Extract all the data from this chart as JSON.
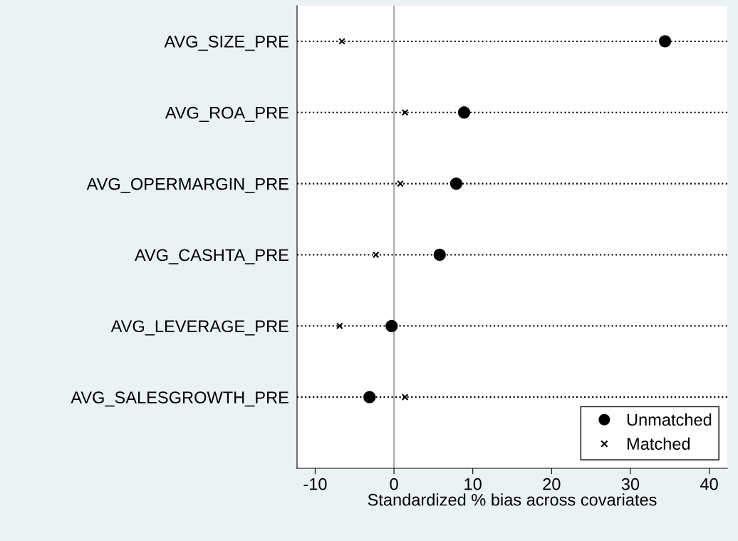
{
  "chart_data": {
    "type": "scatter",
    "orientation": "horizontal",
    "xlabel": "Standardized % bias across covariates",
    "categories": [
      "AVG_SIZE_PRE",
      "AVG_ROA_PRE",
      "AVG_OPERMARGIN_PRE",
      "AVG_CASHTA_PRE",
      "AVG_LEVERAGE_PRE",
      "AVG_SALESGROWTH_PRE"
    ],
    "series": [
      {
        "name": "Unmatched",
        "color": "#000000",
        "marker": "circle",
        "values": [
          34.4,
          8.9,
          7.9,
          5.8,
          -0.3,
          -3.1
        ]
      },
      {
        "name": "Matched",
        "color": "#000000",
        "marker": "cross",
        "values": [
          -6.6,
          1.4,
          0.8,
          -2.3,
          -6.9,
          1.4
        ]
      }
    ],
    "xlim": [
      -12.3,
      42.3
    ],
    "xticks": [
      -10,
      0,
      10,
      20,
      30,
      40
    ],
    "ref_lines": [
      {
        "axis": "x",
        "value": 0,
        "color": "#999999"
      }
    ],
    "grid": "y",
    "line_style": "dotted",
    "legend": "bottom right"
  }
}
